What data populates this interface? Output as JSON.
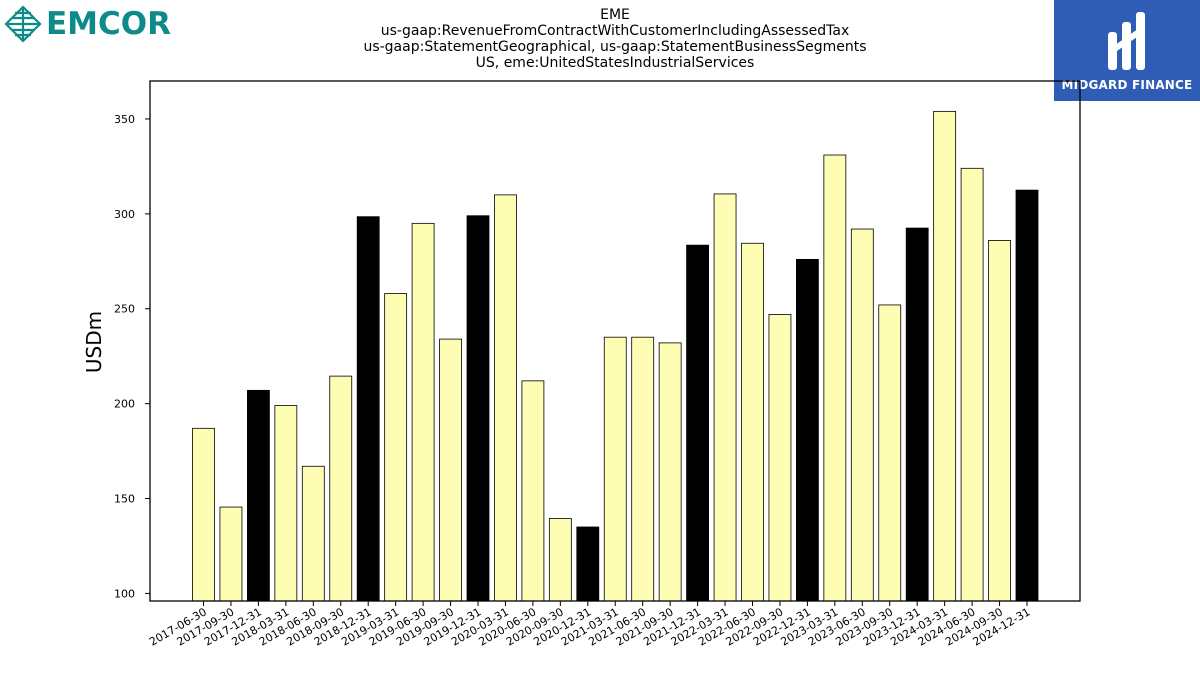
{
  "brand": {
    "name": "EMCOR",
    "logo_icon": "emcor-diamond-icon",
    "color": "#0f8a8a"
  },
  "partner": {
    "name": "MIDGARD FINANCE",
    "logo_icon": "midgard-m-icon",
    "color": "#2f5cb5"
  },
  "chart_data": {
    "type": "bar",
    "title_lines": [
      "EME",
      "us-gaap:RevenueFromContractWithCustomerIncludingAssessedTax",
      "us-gaap:StatementGeographical, us-gaap:StatementBusinessSegments",
      "US, eme:UnitedStatesIndustrialServices"
    ],
    "xlabel": "",
    "ylabel": "USDm",
    "ylim": [
      96,
      370
    ],
    "yticks": [
      100,
      150,
      200,
      250,
      300,
      350
    ],
    "grid": false,
    "colors": {
      "quarter": "#fdfdb4",
      "year_end": "#000000",
      "edge": "#000000"
    },
    "categories": [
      "2017-06-30",
      "2017-09-30",
      "2017-12-31",
      "2018-03-31",
      "2018-06-30",
      "2018-09-30",
      "2018-12-31",
      "2019-03-31",
      "2019-06-30",
      "2019-09-30",
      "2019-12-31",
      "2020-03-31",
      "2020-06-30",
      "2020-09-30",
      "2020-12-31",
      "2021-03-31",
      "2021-06-30",
      "2021-09-30",
      "2021-12-31",
      "2022-03-31",
      "2022-06-30",
      "2022-09-30",
      "2022-12-31",
      "2023-03-31",
      "2023-06-30",
      "2023-09-30",
      "2023-12-31",
      "2024-03-31",
      "2024-06-30",
      "2024-09-30",
      "2024-12-31"
    ],
    "values": [
      187,
      145.5,
      207,
      199,
      167,
      214.5,
      298.5,
      258,
      295,
      234,
      299,
      310,
      212,
      139.5,
      135,
      235,
      235,
      232,
      283.5,
      310.5,
      284.5,
      247,
      276,
      331,
      292,
      252,
      292.5,
      354,
      324,
      286,
      312.5
    ]
  }
}
